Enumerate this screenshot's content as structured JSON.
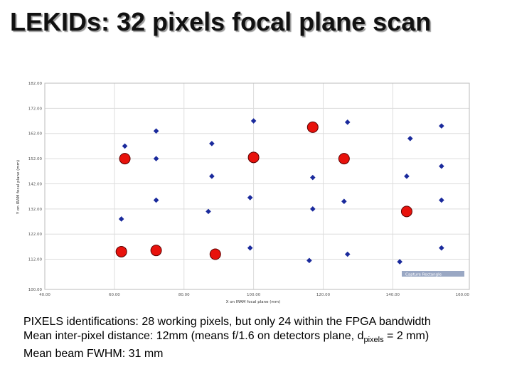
{
  "slide": {
    "title": "LEKIDs: 32 pixels focal plane scan"
  },
  "chart_data": {
    "type": "scatter",
    "xlabel": "X on IRAM focal plane (mm)",
    "ylabel": "Y on IRAM focal plane (mm)",
    "xlim": [
      40,
      162
    ],
    "ylim": [
      100,
      182
    ],
    "x_ticks": [
      "40.00",
      "60.00",
      "80.00",
      "100.00",
      "120.00",
      "140.00",
      "160.00"
    ],
    "y_ticks": [
      "182.00",
      "172.00",
      "162.00",
      "152.00",
      "142.00",
      "132.00",
      "122.00",
      "112.00",
      "100.00"
    ],
    "grid": true,
    "capture_label": "Capture Rectangle",
    "series": [
      {
        "marker": "diamond",
        "color": "#1a2a9c",
        "points": [
          [
            63,
            157
          ],
          [
            72,
            163
          ],
          [
            88,
            158
          ],
          [
            100,
            167
          ],
          [
            127,
            166.5
          ],
          [
            145,
            160
          ],
          [
            154,
            165
          ],
          [
            72,
            152
          ],
          [
            88,
            145
          ],
          [
            117,
            144.5
          ],
          [
            144,
            145
          ],
          [
            154,
            149
          ],
          [
            62,
            128
          ],
          [
            72,
            135.5
          ],
          [
            87,
            131
          ],
          [
            99,
            136.5
          ],
          [
            117,
            132
          ],
          [
            126,
            135
          ],
          [
            154,
            135.5
          ],
          [
            99,
            116.5
          ],
          [
            116,
            111.5
          ],
          [
            127,
            114
          ],
          [
            142,
            111
          ],
          [
            154,
            116.5
          ]
        ]
      },
      {
        "marker": "circle",
        "color": "#e8120c",
        "points": [
          [
            63,
            152
          ],
          [
            62,
            115
          ],
          [
            72,
            115.5
          ],
          [
            89,
            114
          ],
          [
            100,
            152.5
          ],
          [
            117,
            164.5
          ],
          [
            126,
            152
          ],
          [
            144,
            131
          ]
        ]
      }
    ]
  },
  "notes": {
    "line1": "PIXELS identifications: 28 working pixels, but only 24 within the FPGA bandwidth",
    "line2_before": "Mean inter-pixel distance: 12mm (means f/1.6 on detectors plane, d",
    "line2_sub": "pixels",
    "line2_after": " = 2 mm)",
    "line3": "Mean beam FWHM: 31 mm"
  }
}
